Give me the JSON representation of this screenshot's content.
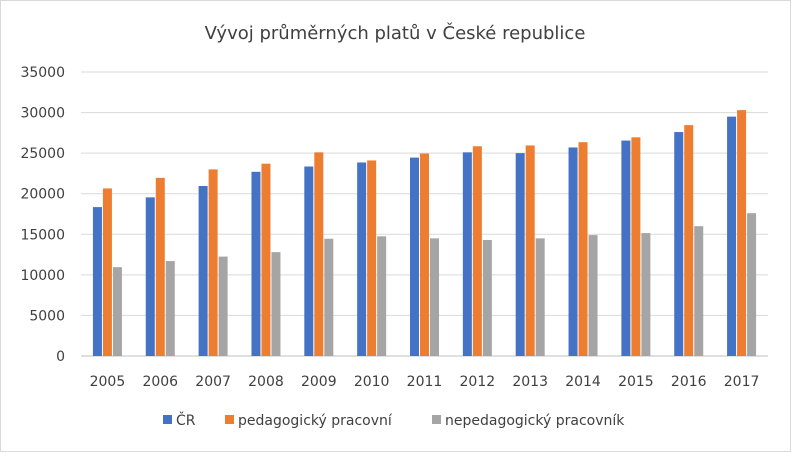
{
  "chart_data": {
    "type": "bar",
    "title": "Vývoj průměrných platů v České republice",
    "xlabel": "",
    "ylabel": "",
    "ylim": [
      0,
      35000
    ],
    "yticks": [
      0,
      5000,
      10000,
      15000,
      20000,
      25000,
      30000,
      35000
    ],
    "grid": true,
    "legend_position": "bottom",
    "categories": [
      "2005",
      "2006",
      "2007",
      "2008",
      "2009",
      "2010",
      "2011",
      "2012",
      "2013",
      "2014",
      "2015",
      "2016",
      "2017"
    ],
    "series": [
      {
        "name": "ČR",
        "color": "#4472c4",
        "values": [
          18350,
          19550,
          20950,
          22700,
          23350,
          23850,
          24450,
          25100,
          25000,
          25700,
          26550,
          27600,
          29500
        ]
      },
      {
        "name": "pedagogický pracovní",
        "color": "#ed7d31",
        "values": [
          20650,
          21950,
          23000,
          23700,
          25100,
          24100,
          24950,
          25850,
          25950,
          26350,
          26950,
          28450,
          30300
        ]
      },
      {
        "name": "nepedagogický pracovník",
        "color": "#a5a5a5",
        "values": [
          10950,
          11700,
          12250,
          12800,
          14450,
          14750,
          14500,
          14300,
          14500,
          14900,
          15150,
          16000,
          17600
        ]
      }
    ]
  }
}
